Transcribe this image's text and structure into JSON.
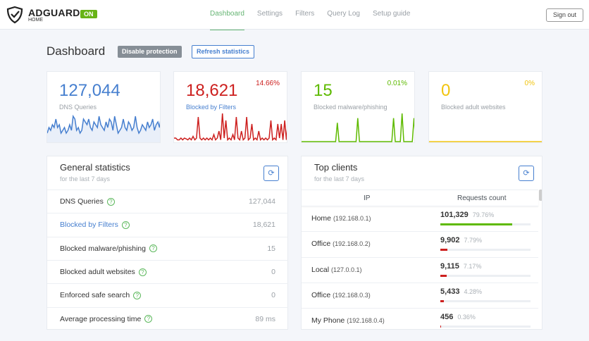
{
  "header": {
    "brand": "ADGUARD",
    "brand_sub": "HOME",
    "status": "ON",
    "nav": [
      "Dashboard",
      "Settings",
      "Filters",
      "Query Log",
      "Setup guide"
    ],
    "active": "Dashboard",
    "sign_out": "Sign out"
  },
  "page": {
    "title": "Dashboard",
    "disable_btn": "Disable protection",
    "refresh_btn": "Refresh statistics"
  },
  "cards": [
    {
      "value": "127,044",
      "label": "DNS Queries",
      "percent": "",
      "color": "#467fcf",
      "spark": [
        3,
        5,
        4,
        6,
        5,
        8,
        5,
        6,
        3,
        4,
        5,
        3,
        4,
        6,
        4,
        9,
        8,
        4,
        5,
        3,
        4,
        8,
        7,
        6,
        8,
        5,
        4,
        7,
        6,
        5,
        9,
        6,
        5,
        4,
        7,
        5,
        8,
        7,
        4,
        9,
        6,
        3,
        4,
        5,
        8,
        5,
        4,
        7,
        6,
        4,
        5,
        9,
        5,
        3,
        4,
        6,
        5,
        4,
        7,
        5,
        6,
        8,
        4,
        6,
        7,
        5,
        10
      ]
    },
    {
      "value": "18,621",
      "label": "Blocked by Filters",
      "percent": "14.66%",
      "color": "#cd201f",
      "spark": [
        1,
        1,
        0.5,
        0.5,
        1,
        0.5,
        1,
        0.8,
        0.5,
        1,
        0.5,
        1.5,
        0.5,
        1,
        7,
        1,
        0.5,
        1,
        0.5,
        1,
        0.5,
        1,
        0.5,
        2,
        0.5,
        1,
        3,
        0.5,
        8,
        1,
        6,
        0.5,
        1,
        0.5,
        2,
        0.5,
        7,
        1,
        0.5,
        3,
        0.5,
        1,
        7,
        0.5,
        1,
        5,
        0.5,
        1,
        0.5,
        3,
        0.5,
        1,
        0.5,
        1,
        0.5,
        1,
        6,
        0.5,
        1,
        0.5,
        5,
        1,
        5,
        0.5,
        6,
        0.5,
        7
      ]
    },
    {
      "value": "15",
      "label": "Blocked malware/phishing",
      "percent": "0.01%",
      "color": "#5eba00",
      "spark": [
        0,
        0,
        0,
        0,
        0,
        0,
        0,
        0,
        0,
        0,
        0,
        0,
        0,
        0,
        0,
        0,
        0,
        0,
        0,
        0,
        0,
        4,
        0,
        0,
        0,
        0,
        0,
        0,
        0,
        0,
        0,
        0,
        0,
        5,
        0,
        0,
        0,
        0,
        0,
        0,
        0,
        0,
        0,
        0,
        0,
        0,
        0,
        0,
        0,
        0,
        0,
        0,
        0,
        0,
        5,
        0,
        0,
        0,
        0,
        6,
        0,
        0,
        0,
        0,
        0,
        0,
        5,
        0
      ]
    },
    {
      "value": "0",
      "label": "Blocked adult websites",
      "percent": "0%",
      "color": "#f1c40f",
      "spark": [
        0,
        0
      ]
    }
  ],
  "general": {
    "title": "General statistics",
    "subtitle": "for the last 7 days",
    "rows": [
      {
        "label": "DNS Queries",
        "value": "127,044",
        "link": false
      },
      {
        "label": "Blocked by Filters",
        "value": "18,621",
        "link": true
      },
      {
        "label": "Blocked malware/phishing",
        "value": "15",
        "link": false
      },
      {
        "label": "Blocked adult websites",
        "value": "0",
        "link": false
      },
      {
        "label": "Enforced safe search",
        "value": "0",
        "link": false
      },
      {
        "label": "Average processing time",
        "value": "89 ms",
        "link": false
      }
    ]
  },
  "clients": {
    "title": "Top clients",
    "subtitle": "for the last 7 days",
    "col_ip": "IP",
    "col_count": "Requests count",
    "rows": [
      {
        "name": "Home",
        "ip": "(192.168.0.1)",
        "count": "101,329",
        "percent": "79.76%",
        "fraction": 0.7976,
        "color": "#5eba00"
      },
      {
        "name": "Office",
        "ip": "(192.168.0.2)",
        "count": "9,902",
        "percent": "7.79%",
        "fraction": 0.0779,
        "color": "#cd201f"
      },
      {
        "name": "Local",
        "ip": "(127.0.0.1)",
        "count": "9,115",
        "percent": "7.17%",
        "fraction": 0.0717,
        "color": "#cd201f"
      },
      {
        "name": "Office",
        "ip": "(192.168.0.3)",
        "count": "5,433",
        "percent": "4.28%",
        "fraction": 0.0428,
        "color": "#cd201f"
      },
      {
        "name": "My Phone",
        "ip": "(192.168.0.4)",
        "count": "456",
        "percent": "0.36%",
        "fraction": 0.0036,
        "color": "#cd201f"
      }
    ]
  }
}
